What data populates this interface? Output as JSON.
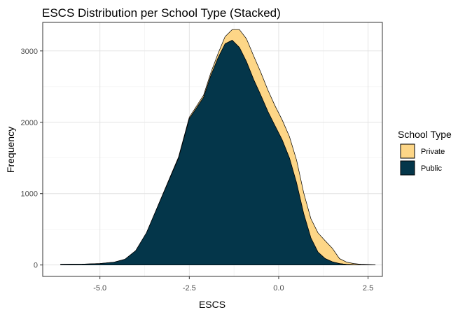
{
  "chart_data": {
    "type": "area",
    "stacked": true,
    "title": "ESCS Distribution per School Type (Stacked)",
    "xlabel": "ESCS",
    "ylabel": "Frequency",
    "xlim": [
      -6.6,
      2.9
    ],
    "ylim": [
      -160,
      3400
    ],
    "xticks": [
      -5.0,
      -2.5,
      0.0,
      2.5
    ],
    "xtick_labels": [
      "-5.0",
      "-2.5",
      "0.0",
      "2.5"
    ],
    "yticks": [
      0,
      1000,
      2000,
      3000
    ],
    "ytick_labels": [
      "0",
      "1000",
      "2000",
      "3000"
    ],
    "grid": true,
    "legend": {
      "title": "School Type",
      "placement": "right"
    },
    "x": [
      -6.1,
      -5.5,
      -5.0,
      -4.6,
      -4.3,
      -4.0,
      -3.7,
      -3.4,
      -3.1,
      -2.8,
      -2.5,
      -2.3,
      -2.1,
      -1.9,
      -1.7,
      -1.5,
      -1.3,
      -1.1,
      -0.9,
      -0.7,
      -0.5,
      -0.3,
      -0.1,
      0.1,
      0.3,
      0.5,
      0.7,
      0.9,
      1.1,
      1.3,
      1.5,
      1.7,
      1.9,
      2.1,
      2.3,
      2.5,
      2.7
    ],
    "series": [
      {
        "name": "Public",
        "color": "#04364A",
        "values": [
          10,
          12,
          20,
          40,
          80,
          200,
          450,
          800,
          1150,
          1500,
          2050,
          2200,
          2350,
          2650,
          2900,
          3100,
          3150,
          3050,
          2850,
          2600,
          2380,
          2150,
          1950,
          1750,
          1500,
          1150,
          720,
          380,
          180,
          90,
          45,
          20,
          8,
          4,
          2,
          1,
          0
        ]
      },
      {
        "name": "Private",
        "color": "#FDD687",
        "values": [
          0,
          0,
          0,
          0,
          0,
          0,
          0,
          5,
          10,
          15,
          20,
          25,
          30,
          40,
          60,
          100,
          150,
          250,
          320,
          330,
          320,
          300,
          280,
          280,
          300,
          320,
          290,
          270,
          270,
          250,
          190,
          70,
          32,
          16,
          8,
          5,
          2
        ]
      }
    ]
  }
}
